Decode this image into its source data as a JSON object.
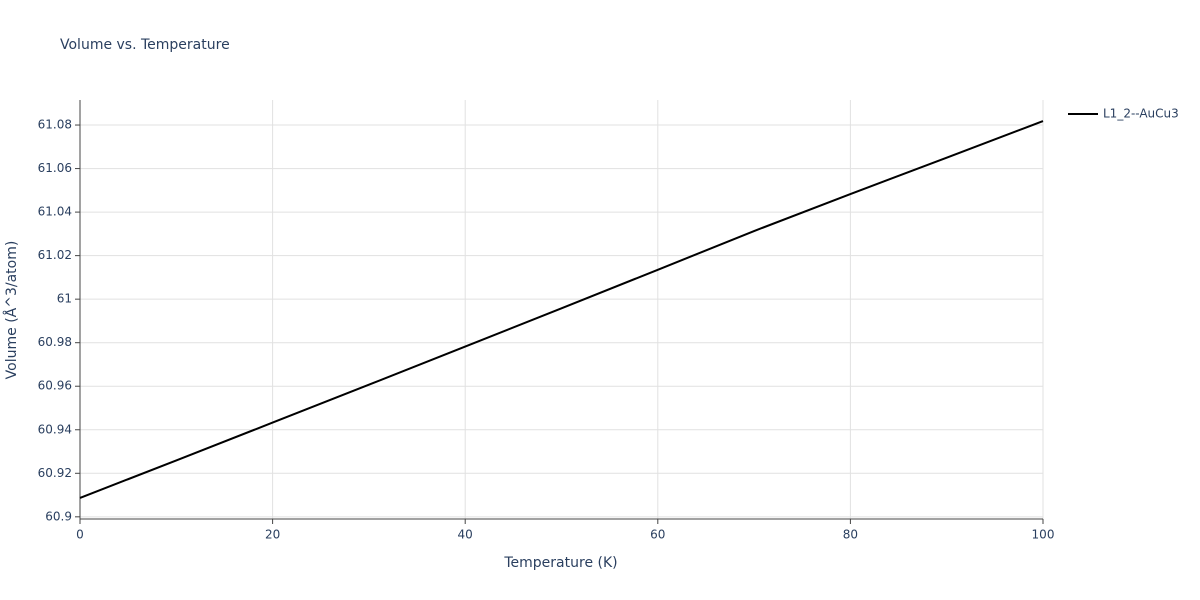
{
  "chart_data": {
    "type": "line",
    "title": "Volume vs. Temperature",
    "x_label": "Temperature (K)",
    "y_label": "Volume (Å^3/atom)",
    "x": [
      0,
      10,
      20,
      30,
      40,
      50,
      60,
      70,
      80,
      90,
      100
    ],
    "series": [
      {
        "name": "L1_2--AuCu3",
        "color": "#000000",
        "values": [
          60.9087,
          60.9259,
          60.9433,
          60.9607,
          60.9782,
          60.9958,
          61.0135,
          61.0313,
          61.0483,
          61.065,
          61.0818
        ]
      }
    ],
    "xlim": [
      0,
      100
    ],
    "xticks": [
      0,
      20,
      40,
      60,
      80,
      100
    ],
    "ylim": [
      60.899,
      61.0915
    ],
    "yticks": [
      60.9,
      60.92,
      60.94,
      60.96,
      60.98,
      61,
      61.02,
      61.04,
      61.06,
      61.08
    ],
    "grid": true,
    "legend": "right"
  }
}
